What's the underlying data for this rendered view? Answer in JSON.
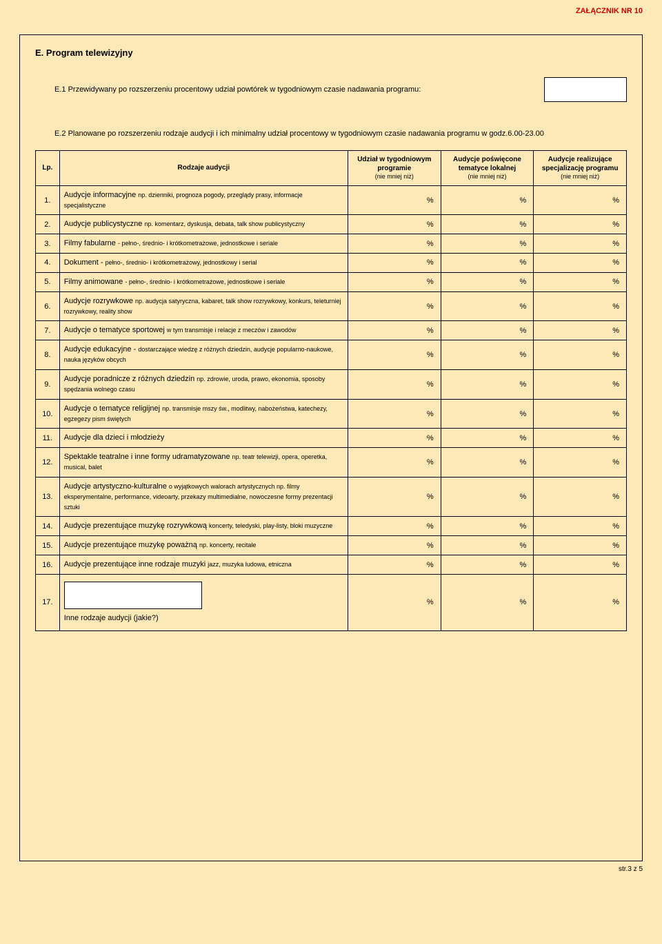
{
  "document": {
    "annex_label": "ZAŁĄCZNIK NR  10",
    "section_label": "E. Program telewizyjny",
    "e1_text": "E.1  Przewidywany po rozszerzeniu procentowy udział powtórek w tygodniowym czasie nadawania programu:",
    "e2_text": "E.2  Planowane po rozszerzeniu rodzaje audycji i ich minimalny udział procentowy w tygodniowym czasie nadawania programu w godz.6.00-23.00"
  },
  "table": {
    "headers": {
      "lp": "Lp.",
      "rodzaje": "Rodzaje audycji",
      "col1_main": "Udział w tygodniowym programie",
      "col1_sub": "(nie mniej niż)",
      "col2_main": "Audycje poświęcone tematyce lokalnej",
      "col2_sub": "(nie mniej niż)",
      "col3_main": "Audycje realizujące specjalizację programu",
      "col3_sub": "(nie mniej niż)"
    },
    "rows": [
      {
        "num": "1.",
        "main": "Audycje informacyjne ",
        "tail": "np. dzienniki, prognoza pogody, przeglądy prasy, informacje specjalistyczne",
        "v1": "%",
        "v2": "%",
        "v3": "%"
      },
      {
        "num": "2.",
        "main": "Audycje publicystyczne ",
        "tail": "np. komentarz, dyskusja, debata, talk show publicystyczny",
        "v1": "%",
        "v2": "%",
        "v3": "%"
      },
      {
        "num": "3.",
        "main": "Filmy fabularne  ",
        "tail": "- pełno-, średnio- i krótkometrażowe, jednostkowe i seriale",
        "v1": "%",
        "v2": "%",
        "v3": "%"
      },
      {
        "num": "4.",
        "main": "Dokument - ",
        "tail": "pełno-, średnio- i krótkometrażowy, jednostkowy i serial",
        "v1": "%",
        "v2": "%",
        "v3": "%"
      },
      {
        "num": "5.",
        "main": "Filmy animowane ",
        "tail": "- pełno-, średnio- i krótkometrażowe, jednostkowe i seriale",
        "v1": "%",
        "v2": "%",
        "v3": "%"
      },
      {
        "num": "6.",
        "main": "Audycje rozrywkowe ",
        "tail": "np. audycja satyryczna, kabaret, talk show rozrywkowy, konkurs, teleturniej rozrywkowy, reality show",
        "v1": "%",
        "v2": "%",
        "v3": "%"
      },
      {
        "num": "7.",
        "main": "Audycje  o tematyce sportowej ",
        "tail": "w tym transmisje i relacje z meczów i zawodów",
        "v1": "%",
        "v2": "%",
        "v3": "%"
      },
      {
        "num": "8.",
        "main": "Audycje edukacyjne - ",
        "tail": "dostarczające wiedzę z różnych dziedzin, audycje popularno-naukowe, nauka języków obcych",
        "v1": "%",
        "v2": "%",
        "v3": "%"
      },
      {
        "num": "9.",
        "main": "Audycje poradnicze z różnych dziedzin ",
        "tail": "np. zdrowie, uroda, prawo, ekonomia, sposoby spędzania wolnego czasu",
        "v1": "%",
        "v2": "%",
        "v3": "%"
      },
      {
        "num": "10.",
        "main": "Audycje o tematyce religijnej ",
        "tail": "np. transmisje mszy św., modlitwy, nabożeństwa, katechezy, egzegezy pism świętych",
        "v1": "%",
        "v2": "%",
        "v3": "%"
      },
      {
        "num": "11.",
        "main": "Audycje dla dzieci i młodzieży",
        "tail": "",
        "v1": "%",
        "v2": "%",
        "v3": "%"
      },
      {
        "num": "12.",
        "main": "Spektakle teatralne i inne formy udramatyzowane ",
        "tail": "np. teatr telewizji, opera, operetka, musical, balet",
        "v1": "%",
        "v2": "%",
        "v3": "%"
      },
      {
        "num": "13.",
        "main": "Audycje artystyczno-kulturalne  ",
        "tail": "o wyjątkowych walorach artystycznych np. filmy eksperymentalne, performance, videoarty, przekazy multimedialne, nowoczesne formy prezentacji sztuki",
        "v1": "%",
        "v2": "%",
        "v3": "%"
      },
      {
        "num": "14.",
        "main": "Audycje prezentujące muzykę rozrywkową ",
        "tail": "koncerty, teledyski, play-listy, bloki muzyczne",
        "v1": "%",
        "v2": "%",
        "v3": "%"
      },
      {
        "num": "15.",
        "main": "Audycje prezentujące muzykę poważną ",
        "tail": "np. koncerty, recitale",
        "v1": "%",
        "v2": "%",
        "v3": "%"
      },
      {
        "num": "16.",
        "main": "Audycje prezentujące inne rodzaje muzyki ",
        "tail": "jazz, muzyka ludowa, etniczna",
        "v1": "%",
        "v2": "%",
        "v3": "%"
      }
    ],
    "row17": {
      "num": "17.",
      "main": "Inne rodzaje audycji (jakie?)",
      "v1": "%",
      "v2": "%",
      "v3": "%"
    }
  },
  "footer": "str.3 z 5",
  "colors": {
    "page_bg": "#fde9b7",
    "border": "#000000",
    "accent_red": "#cc0000",
    "input_bg": "#ffffff"
  }
}
